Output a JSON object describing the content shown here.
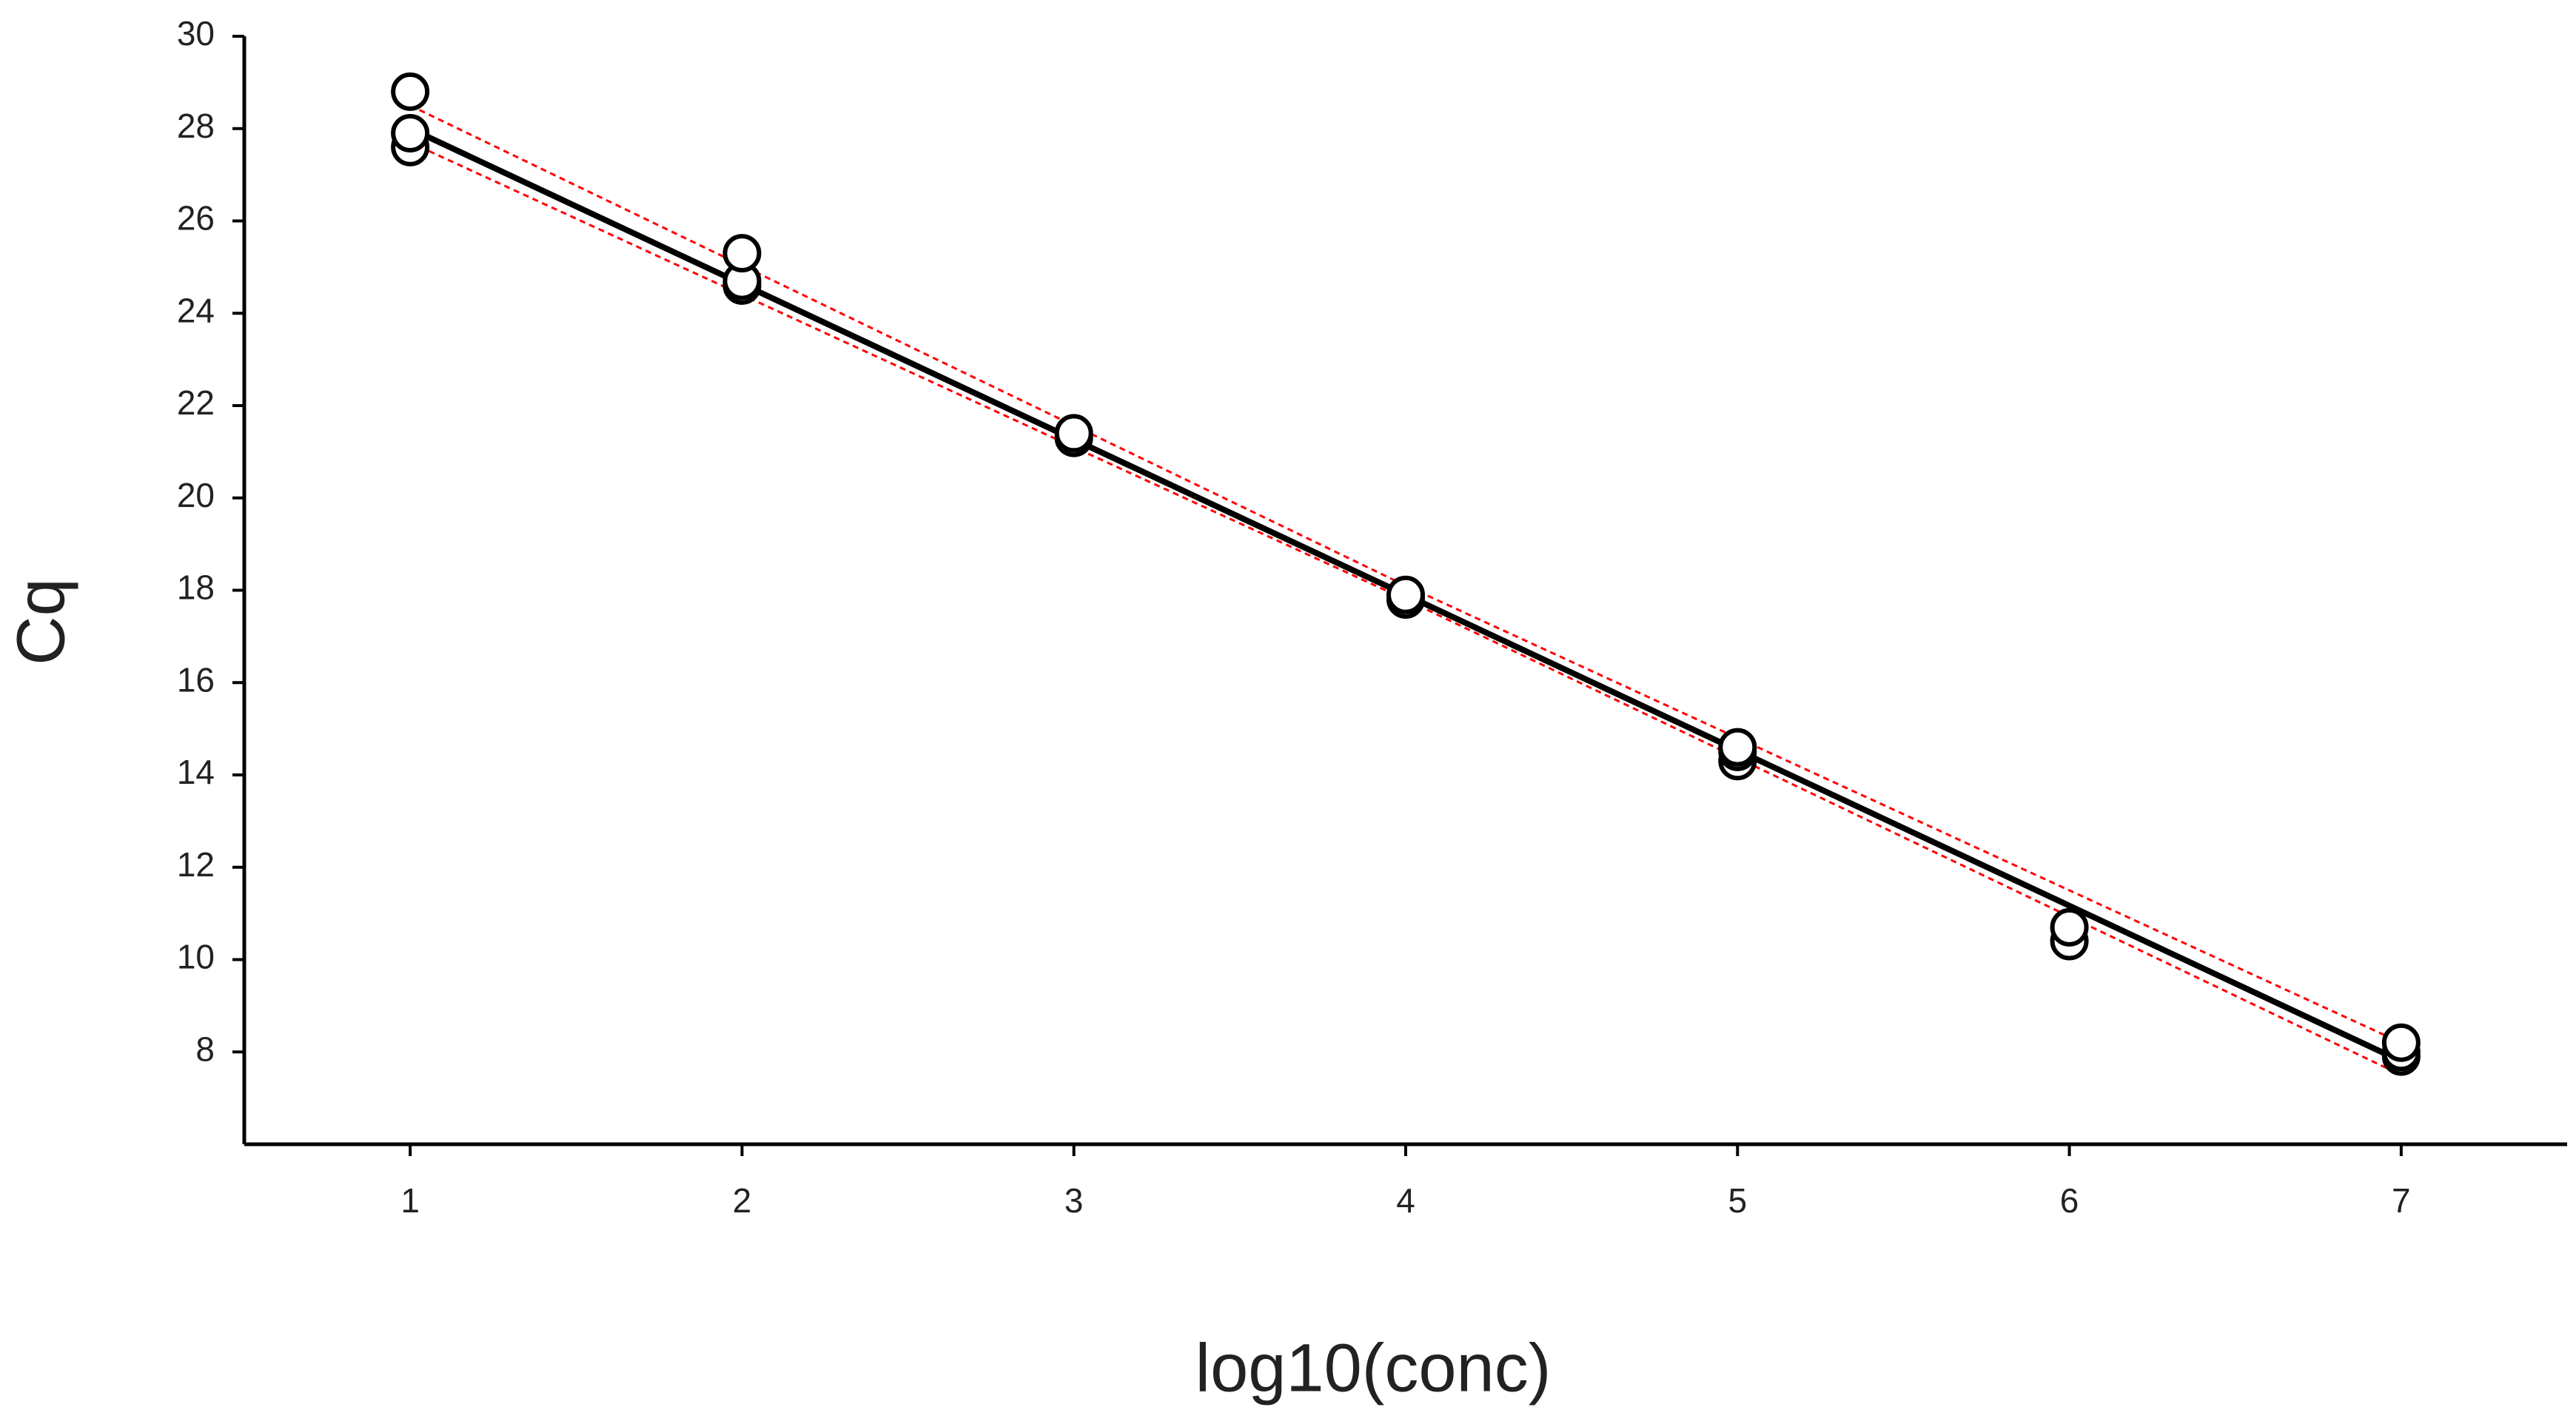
{
  "chart_data": {
    "type": "scatter",
    "x_label": "log10(conc)",
    "y_label": "Cq",
    "xlim": [
      0.5,
      7.5
    ],
    "xticks": [
      1,
      2,
      3,
      4,
      5,
      6,
      7
    ],
    "ylim": [
      6,
      30
    ],
    "yticks": [
      8,
      10,
      12,
      14,
      16,
      18,
      20,
      22,
      24,
      26,
      28,
      30
    ],
    "grid": false,
    "series": [
      {
        "kind": "line",
        "color": "#ff0000",
        "dashed": true,
        "x": [
          1,
          4,
          7
        ],
        "values": [
          28.5,
          18.1,
          8.2
        ]
      },
      {
        "kind": "line",
        "color": "#ff0000",
        "dashed": true,
        "x": [
          1,
          4,
          7
        ],
        "values": [
          27.7,
          17.8,
          7.5
        ]
      },
      {
        "kind": "line",
        "color": "#000000",
        "dashed": false,
        "x": [
          1,
          7
        ],
        "values": [
          28.0,
          7.8
        ]
      },
      {
        "kind": "points",
        "color": "#ffffff",
        "x": [
          1,
          1,
          1,
          2,
          2,
          2,
          3,
          3,
          4,
          4,
          5,
          5,
          5,
          6,
          6,
          7,
          7,
          7
        ],
        "values": [
          27.6,
          27.9,
          28.8,
          24.6,
          24.7,
          25.3,
          21.3,
          21.4,
          17.8,
          17.9,
          14.3,
          14.5,
          14.6,
          10.4,
          10.7,
          7.9,
          8.0,
          8.2
        ]
      }
    ]
  }
}
